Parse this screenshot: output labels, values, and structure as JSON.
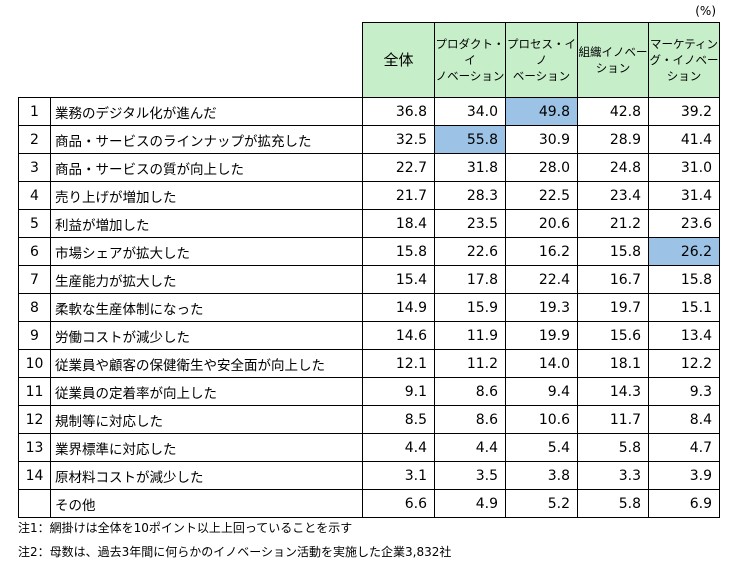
{
  "unit": "(%)",
  "headers": [
    "全体",
    "プロダクト・イノベーション",
    "プロセス・イノベーション",
    "組織イノベーション",
    "マーケティング・イノベーション"
  ],
  "header_lines": [
    [
      "全体"
    ],
    [
      "プロダクト・イ",
      "ノベーション"
    ],
    [
      "プロセス・イノ",
      "ベーション"
    ],
    [
      "組織イノベー",
      "ション"
    ],
    [
      "マーケティン",
      "グ・イノベー",
      "ション"
    ]
  ],
  "rows": [
    {
      "no": "1",
      "label": "業務のデジタル化が進んだ",
      "values": [
        "36.8",
        "34.0",
        "49.8",
        "42.8",
        "39.2"
      ],
      "highlight": [
        false,
        false,
        true,
        false,
        false
      ]
    },
    {
      "no": "2",
      "label": "商品・サービスのラインナップが拡充した",
      "values": [
        "32.5",
        "55.8",
        "30.9",
        "28.9",
        "41.4"
      ],
      "highlight": [
        false,
        true,
        false,
        false,
        false
      ]
    },
    {
      "no": "3",
      "label": "商品・サービスの質が向上した",
      "values": [
        "22.7",
        "31.8",
        "28.0",
        "24.8",
        "31.0"
      ],
      "highlight": [
        false,
        false,
        false,
        false,
        false
      ]
    },
    {
      "no": "4",
      "label": "売り上げが増加した",
      "values": [
        "21.7",
        "28.3",
        "22.5",
        "23.4",
        "31.4"
      ],
      "highlight": [
        false,
        false,
        false,
        false,
        false
      ]
    },
    {
      "no": "5",
      "label": "利益が増加した",
      "values": [
        "18.4",
        "23.5",
        "20.6",
        "21.2",
        "23.6"
      ],
      "highlight": [
        false,
        false,
        false,
        false,
        false
      ]
    },
    {
      "no": "6",
      "label": "市場シェアが拡大した",
      "values": [
        "15.8",
        "22.6",
        "16.2",
        "15.8",
        "26.2"
      ],
      "highlight": [
        false,
        false,
        false,
        false,
        true
      ]
    },
    {
      "no": "7",
      "label": "生産能力が拡大した",
      "values": [
        "15.4",
        "17.8",
        "22.4",
        "16.7",
        "15.8"
      ],
      "highlight": [
        false,
        false,
        false,
        false,
        false
      ]
    },
    {
      "no": "8",
      "label": "柔軟な生産体制になった",
      "values": [
        "14.9",
        "15.9",
        "19.3",
        "19.7",
        "15.1"
      ],
      "highlight": [
        false,
        false,
        false,
        false,
        false
      ]
    },
    {
      "no": "9",
      "label": "労働コストが減少した",
      "values": [
        "14.6",
        "11.9",
        "19.9",
        "15.6",
        "13.4"
      ],
      "highlight": [
        false,
        false,
        false,
        false,
        false
      ]
    },
    {
      "no": "10",
      "label": "従業員や顧客の保健衛生や安全面が向上した",
      "values": [
        "12.1",
        "11.2",
        "14.0",
        "18.1",
        "12.2"
      ],
      "highlight": [
        false,
        false,
        false,
        false,
        false
      ]
    },
    {
      "no": "11",
      "label": "従業員の定着率が向上した",
      "values": [
        "9.1",
        "8.6",
        "9.4",
        "14.3",
        "9.3"
      ],
      "highlight": [
        false,
        false,
        false,
        false,
        false
      ]
    },
    {
      "no": "12",
      "label": "規制等に対応した",
      "values": [
        "8.5",
        "8.6",
        "10.6",
        "11.7",
        "8.4"
      ],
      "highlight": [
        false,
        false,
        false,
        false,
        false
      ]
    },
    {
      "no": "13",
      "label": "業界標準に対応した",
      "values": [
        "4.4",
        "4.4",
        "5.4",
        "5.8",
        "4.7"
      ],
      "highlight": [
        false,
        false,
        false,
        false,
        false
      ]
    },
    {
      "no": "14",
      "label": "原材料コストが減少した",
      "values": [
        "3.1",
        "3.5",
        "3.8",
        "3.3",
        "3.9"
      ],
      "highlight": [
        false,
        false,
        false,
        false,
        false
      ]
    },
    {
      "no": "",
      "label": "その他",
      "values": [
        "6.6",
        "4.9",
        "5.2",
        "5.8",
        "6.9"
      ],
      "highlight": [
        false,
        false,
        false,
        false,
        false
      ]
    }
  ],
  "colors": {
    "header_bg": "#c6eec9",
    "highlight_bg": "#9cc2e5"
  },
  "notes": [
    "注1：網掛けは全体を10ポイント以上上回っていることを示す",
    "注2：母数は、過去3年間に何らかのイノベーション活動を実施した企業3,832社"
  ]
}
